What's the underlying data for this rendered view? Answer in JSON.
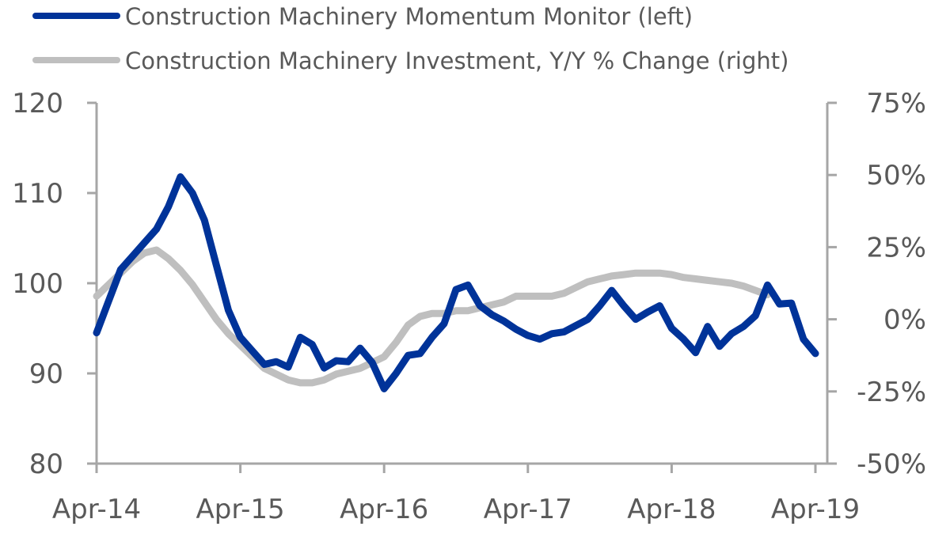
{
  "chart_data": {
    "type": "line",
    "legend_placement": "top-left",
    "grid": false,
    "x_tick_labels": [
      "Apr-14",
      "Apr-15",
      "Apr-16",
      "Apr-17",
      "Apr-18",
      "Apr-19"
    ],
    "y_left": {
      "ylim": [
        80,
        120
      ],
      "tick_labels": [
        "80",
        "90",
        "100",
        "110",
        "120"
      ]
    },
    "y_right": {
      "ylim": [
        -50,
        75
      ],
      "tick_labels": [
        "-50%",
        "-25%",
        "0%",
        "25%",
        "50%",
        "75%"
      ]
    },
    "series": [
      {
        "name": "Construction Machinery Momentum Monitor (left)",
        "axis": "left",
        "color": "#003399",
        "points": [
          [
            "2014-04",
            94.5
          ],
          [
            "2014-05",
            98.0
          ],
          [
            "2014-06",
            101.5
          ],
          [
            "2014-07",
            103.0
          ],
          [
            "2014-08",
            104.5
          ],
          [
            "2014-09",
            106.0
          ],
          [
            "2014-10",
            108.5
          ],
          [
            "2014-11",
            111.8
          ],
          [
            "2014-12",
            110.0
          ],
          [
            "2015-01",
            107.0
          ],
          [
            "2015-02",
            102.0
          ],
          [
            "2015-03",
            97.0
          ],
          [
            "2015-04",
            94.0
          ],
          [
            "2015-05",
            92.5
          ],
          [
            "2015-06",
            91.0
          ],
          [
            "2015-07",
            91.3
          ],
          [
            "2015-08",
            90.7
          ],
          [
            "2015-09",
            94.0
          ],
          [
            "2015-10",
            93.2
          ],
          [
            "2015-11",
            90.6
          ],
          [
            "2015-12",
            91.4
          ],
          [
            "2016-01",
            91.3
          ],
          [
            "2016-02",
            92.8
          ],
          [
            "2016-03",
            91.2
          ],
          [
            "2016-04",
            88.3
          ],
          [
            "2016-05",
            90.0
          ],
          [
            "2016-06",
            92.0
          ],
          [
            "2016-07",
            92.2
          ],
          [
            "2016-08",
            94.0
          ],
          [
            "2016-09",
            95.5
          ],
          [
            "2016-10",
            99.3
          ],
          [
            "2016-11",
            99.8
          ],
          [
            "2016-12",
            97.5
          ],
          [
            "2017-01",
            96.5
          ],
          [
            "2017-02",
            95.8
          ],
          [
            "2017-03",
            94.9
          ],
          [
            "2017-04",
            94.2
          ],
          [
            "2017-05",
            93.8
          ],
          [
            "2017-06",
            94.4
          ],
          [
            "2017-07",
            94.6
          ],
          [
            "2017-08",
            95.3
          ],
          [
            "2017-09",
            96.0
          ],
          [
            "2017-10",
            97.5
          ],
          [
            "2017-11",
            99.2
          ],
          [
            "2017-12",
            97.5
          ],
          [
            "2018-01",
            96.0
          ],
          [
            "2018-02",
            96.8
          ],
          [
            "2018-03",
            97.5
          ],
          [
            "2018-04",
            95.0
          ],
          [
            "2018-05",
            93.8
          ],
          [
            "2018-06",
            92.3
          ],
          [
            "2018-07",
            95.2
          ],
          [
            "2018-08",
            93.0
          ],
          [
            "2018-09",
            94.4
          ],
          [
            "2018-10",
            95.2
          ],
          [
            "2018-11",
            96.4
          ],
          [
            "2018-12",
            99.8
          ],
          [
            "2019-01",
            97.7
          ],
          [
            "2019-02",
            97.8
          ],
          [
            "2019-03",
            93.8
          ],
          [
            "2019-04",
            92.2
          ]
        ]
      },
      {
        "name": "Construction Machinery Investment, Y/Y % Change (right)",
        "axis": "right",
        "color": "#bfbfbf",
        "points": [
          [
            "2014-04",
            8
          ],
          [
            "2014-05",
            12
          ],
          [
            "2014-06",
            16
          ],
          [
            "2014-07",
            20
          ],
          [
            "2014-08",
            23
          ],
          [
            "2014-09",
            24
          ],
          [
            "2014-10",
            21
          ],
          [
            "2014-11",
            17
          ],
          [
            "2014-12",
            12
          ],
          [
            "2015-01",
            6
          ],
          [
            "2015-02",
            0
          ],
          [
            "2015-03",
            -5
          ],
          [
            "2015-04",
            -9
          ],
          [
            "2015-05",
            -13
          ],
          [
            "2015-06",
            -17
          ],
          [
            "2015-07",
            -19
          ],
          [
            "2015-08",
            -21
          ],
          [
            "2015-09",
            -22
          ],
          [
            "2015-10",
            -22
          ],
          [
            "2015-11",
            -21
          ],
          [
            "2015-12",
            -19
          ],
          [
            "2016-01",
            -18
          ],
          [
            "2016-02",
            -17
          ],
          [
            "2016-03",
            -15
          ],
          [
            "2016-04",
            -13
          ],
          [
            "2016-05",
            -8
          ],
          [
            "2016-06",
            -2
          ],
          [
            "2016-07",
            1
          ],
          [
            "2016-08",
            2
          ],
          [
            "2016-09",
            2
          ],
          [
            "2016-10",
            3
          ],
          [
            "2016-11",
            3
          ],
          [
            "2016-12",
            4
          ],
          [
            "2017-01",
            5
          ],
          [
            "2017-02",
            6
          ],
          [
            "2017-03",
            8
          ],
          [
            "2017-04",
            8
          ],
          [
            "2017-05",
            8
          ],
          [
            "2017-06",
            8
          ],
          [
            "2017-07",
            9
          ],
          [
            "2017-08",
            11
          ],
          [
            "2017-09",
            13
          ],
          [
            "2017-10",
            14
          ],
          [
            "2017-11",
            15
          ],
          [
            "2017-12",
            15.5
          ],
          [
            "2018-01",
            16
          ],
          [
            "2018-02",
            16
          ],
          [
            "2018-03",
            16
          ],
          [
            "2018-04",
            15.5
          ],
          [
            "2018-05",
            14.5
          ],
          [
            "2018-06",
            14
          ],
          [
            "2018-07",
            13.5
          ],
          [
            "2018-08",
            13
          ],
          [
            "2018-09",
            12.5
          ],
          [
            "2018-10",
            11.5
          ],
          [
            "2018-11",
            10
          ],
          [
            "2018-12",
            8.5
          ]
        ]
      }
    ]
  }
}
